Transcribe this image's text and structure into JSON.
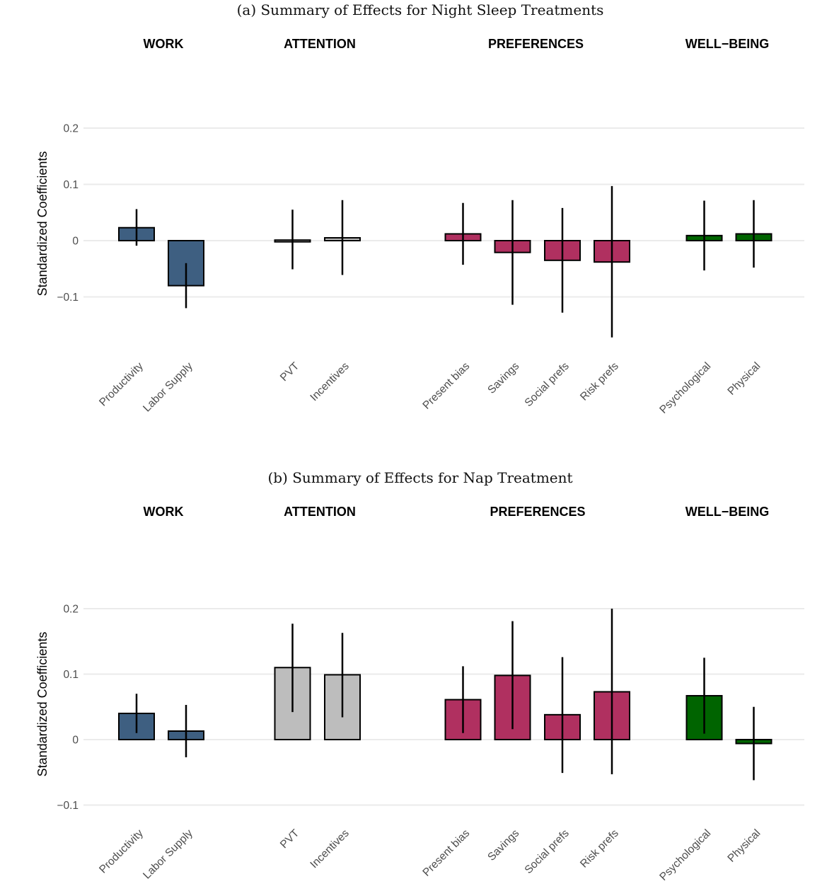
{
  "chart_data": [
    {
      "type": "bar",
      "title": "(a) Summary of Effects for Night Sleep Treatments",
      "ylabel": "Standardized Coefficients",
      "ylim": [
        -0.2,
        0.24
      ],
      "yticks": [
        0.2,
        0.1,
        0,
        -0.1
      ],
      "ytick_labels": [
        "0.2",
        "0.1",
        "0",
        "−0.1"
      ],
      "groups": [
        {
          "label": "WORK",
          "color": "#3e5f81",
          "categories": [
            "Productivity",
            "Labor Supply"
          ],
          "values": [
            0.023,
            -0.08
          ],
          "ci_low": [
            -0.009,
            -0.12
          ],
          "ci_high": [
            0.056,
            -0.04
          ]
        },
        {
          "label": "ATTENTION",
          "color": "#bdbdbd",
          "categories": [
            "PVT",
            "Incentives"
          ],
          "values": [
            0.001,
            0.005
          ],
          "ci_low": [
            -0.051,
            -0.061
          ],
          "ci_high": [
            0.055,
            0.072
          ]
        },
        {
          "label": "PREFERENCES",
          "color": "#b03060",
          "categories": [
            "Present bias",
            "Savings",
            "Social prefs",
            "Risk prefs"
          ],
          "values": [
            0.012,
            -0.021,
            -0.035,
            -0.038
          ],
          "ci_low": [
            -0.043,
            -0.114,
            -0.128,
            -0.172
          ],
          "ci_high": [
            0.067,
            0.072,
            0.058,
            0.097
          ]
        },
        {
          "label": "WELL−BEING",
          "color": "#006400",
          "categories": [
            "Psychological",
            "Physical"
          ],
          "values": [
            0.009,
            0.012
          ],
          "ci_low": [
            -0.053,
            -0.048
          ],
          "ci_high": [
            0.071,
            0.072
          ]
        }
      ]
    },
    {
      "type": "bar",
      "title": "(b) Summary of Effects for Nap Treatment",
      "ylabel": "Standardized Coefficients",
      "ylim": [
        -0.11,
        0.22
      ],
      "yticks": [
        0.2,
        0.1,
        0,
        -0.1
      ],
      "ytick_labels": [
        "0.2",
        "0.1",
        "0",
        "−0.1"
      ],
      "groups": [
        {
          "label": "WORK",
          "color": "#3e5f81",
          "categories": [
            "Productivity",
            "Labor Supply"
          ],
          "values": [
            0.04,
            0.013
          ],
          "ci_low": [
            0.01,
            -0.027
          ],
          "ci_high": [
            0.07,
            0.053
          ]
        },
        {
          "label": "ATTENTION",
          "color": "#bdbdbd",
          "categories": [
            "PVT",
            "Incentives"
          ],
          "values": [
            0.11,
            0.099
          ],
          "ci_low": [
            0.042,
            0.034
          ],
          "ci_high": [
            0.177,
            0.163
          ]
        },
        {
          "label": "PREFERENCES",
          "color": "#b03060",
          "categories": [
            "Present bias",
            "Savings",
            "Social prefs",
            "Risk prefs"
          ],
          "values": [
            0.061,
            0.098,
            0.038,
            0.073
          ],
          "ci_low": [
            0.01,
            0.016,
            -0.051,
            -0.053
          ],
          "ci_high": [
            0.112,
            0.181,
            0.126,
            0.2
          ]
        },
        {
          "label": "WELL−BEING",
          "color": "#006400",
          "categories": [
            "Psychological",
            "Physical"
          ],
          "values": [
            0.067,
            -0.006
          ],
          "ci_low": [
            0.009,
            -0.062
          ],
          "ci_high": [
            0.125,
            0.05
          ]
        }
      ]
    }
  ]
}
